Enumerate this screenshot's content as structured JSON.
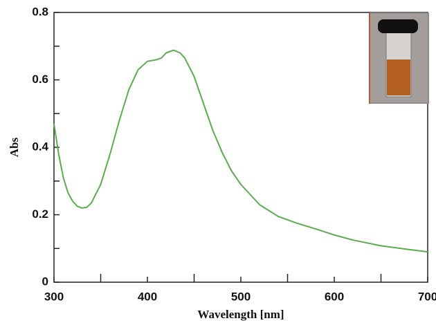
{
  "chart_data": {
    "type": "line",
    "xlabel": "Wavelength [nm]",
    "ylabel": "Abs",
    "x": [
      300,
      305,
      310,
      315,
      320,
      325,
      330,
      335,
      340,
      350,
      360,
      370,
      380,
      390,
      400,
      410,
      415,
      420,
      428,
      435,
      440,
      450,
      460,
      470,
      480,
      490,
      500,
      520,
      540,
      560,
      580,
      600,
      620,
      650,
      680,
      700
    ],
    "values": [
      0.47,
      0.38,
      0.31,
      0.265,
      0.24,
      0.225,
      0.22,
      0.222,
      0.235,
      0.29,
      0.38,
      0.48,
      0.57,
      0.63,
      0.655,
      0.66,
      0.665,
      0.68,
      0.688,
      0.68,
      0.665,
      0.61,
      0.53,
      0.45,
      0.385,
      0.33,
      0.29,
      0.23,
      0.195,
      0.175,
      0.158,
      0.14,
      0.125,
      0.108,
      0.097,
      0.09
    ],
    "color": "#5aac4e",
    "xlim": [
      300,
      700
    ],
    "ylim": [
      0,
      0.8
    ],
    "xticks": [
      300,
      400,
      500,
      600,
      700
    ],
    "xminor": [
      350,
      450,
      550,
      650
    ],
    "yticks": [
      0,
      0.2,
      0.4,
      0.6,
      0.8
    ],
    "yminor": [
      0.1,
      0.3,
      0.5,
      0.7
    ]
  }
}
